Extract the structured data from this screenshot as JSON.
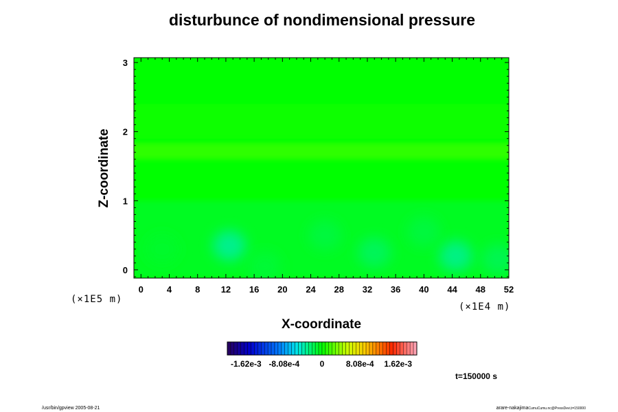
{
  "chart_data": {
    "type": "heatmap",
    "title": "disturbunce of nondimensional pressure",
    "xlabel": "X-coordinate",
    "ylabel": "Z-coordinate",
    "x_scale_label": "(×1E4 m)",
    "y_scale_label": "(×1E5 m)",
    "xlim": [
      -1,
      52
    ],
    "ylim": [
      -0.12,
      3.07
    ],
    "x_ticks": [
      "0",
      "4",
      "8",
      "12",
      "16",
      "20",
      "24",
      "28",
      "32",
      "36",
      "40",
      "44",
      "48",
      "52"
    ],
    "y_ticks": [
      "0",
      "1",
      "2",
      "3"
    ],
    "colorbar": {
      "range": [
        -0.00202,
        0.00202
      ],
      "ticks": [
        {
          "label": "-1.62e-3",
          "value": -0.00162
        },
        {
          "label": "-8.08e-4",
          "value": -0.000808
        },
        {
          "label": "0",
          "value": 0
        },
        {
          "label": "8.08e-4",
          "value": 0.000808
        },
        {
          "label": "1.62e-3",
          "value": 0.00162
        }
      ]
    },
    "field": {
      "background_value": 0,
      "bands": [
        {
          "z_center": 1.72,
          "z_halfwidth": 0.12,
          "value": 0.00012
        },
        {
          "z_center": 2.15,
          "z_halfwidth": 0.25,
          "value": 4e-05
        }
      ],
      "low_layer": {
        "z_top": 1.0,
        "value": -8e-05
      },
      "anomalies": [
        {
          "x": 12.5,
          "z": 0.35,
          "value": -0.00032
        },
        {
          "x": 44.5,
          "z": 0.2,
          "value": -0.0003
        },
        {
          "x": 33.0,
          "z": 0.25,
          "value": -0.0002
        },
        {
          "x": 50.5,
          "z": 0.15,
          "value": -0.00018
        },
        {
          "x": 26.0,
          "z": 0.5,
          "value": -0.00014
        },
        {
          "x": 40.0,
          "z": 0.55,
          "value": -0.00014
        },
        {
          "x": 17.5,
          "z": 0.05,
          "value": -0.00012
        },
        {
          "x": 3.0,
          "z": 0.3,
          "value": -0.0001
        }
      ]
    }
  },
  "time_label": "t=150000 s",
  "footer": {
    "left": "/usr/bin/gpview 2005-08-21",
    "right_main": "arare-nakajima",
    "right_sub": "CumuCumu.nc@PressDevi,t=150000"
  }
}
